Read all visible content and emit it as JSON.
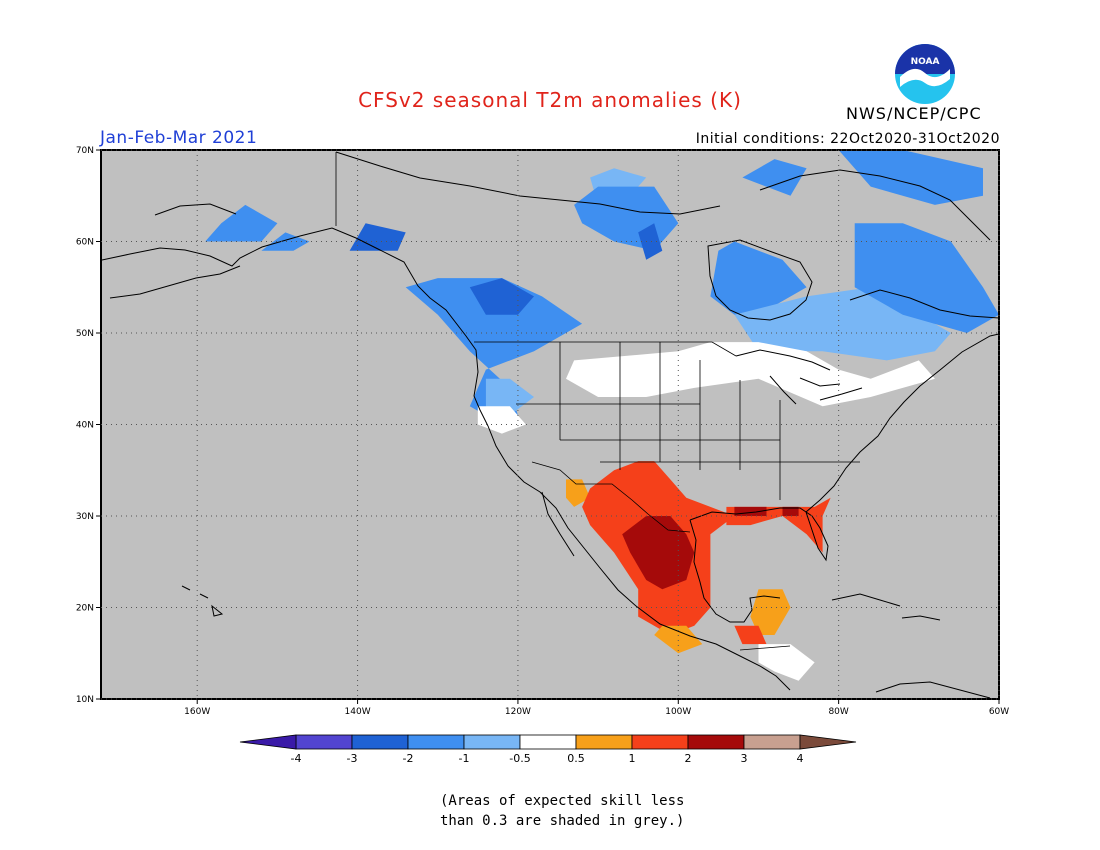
{
  "title": "CFSv2 seasonal T2m anomalies (K)",
  "agency": "NWS/NCEP/CPC",
  "logo_text": "NOAA",
  "period": "Jan-Feb-Mar 2021",
  "initial_conditions": "Initial conditions: 22Oct2020-31Oct2020",
  "note_lines": [
    "(Areas of expected skill less",
    "than 0.3 are shaded in grey.)"
  ],
  "colors": {
    "grey": "#c0c0c0",
    "lt4": "#3a1aa8",
    "m4m3": "#5244d0",
    "m3m2": "#1f62d4",
    "m2m1": "#3f8ff0",
    "m1m05": "#78b6f5",
    "neutral": "#ffffff",
    "p05p1": "#f7a01a",
    "p1p2": "#f5401a",
    "p2p3": "#a50a0a",
    "p3p4": "#c8a090",
    "gt4": "#7b4a3a"
  },
  "map": {
    "lon_range": [
      -172,
      -60
    ],
    "lat_range": [
      10,
      70
    ],
    "lon_ticks": [
      {
        "lon": -160,
        "label": "160W"
      },
      {
        "lon": -140,
        "label": "140W"
      },
      {
        "lon": -120,
        "label": "120W"
      },
      {
        "lon": -100,
        "label": "100W"
      },
      {
        "lon": -80,
        "label": "80W"
      },
      {
        "lon": -60,
        "label": "60W"
      }
    ],
    "lat_ticks": [
      {
        "lat": 10,
        "label": "10N"
      },
      {
        "lat": 20,
        "label": "20N"
      },
      {
        "lat": 30,
        "label": "30N"
      },
      {
        "lat": 40,
        "label": "40N"
      },
      {
        "lat": 50,
        "label": "50N"
      },
      {
        "lat": 60,
        "label": "60N"
      },
      {
        "lat": 70,
        "label": "70N"
      }
    ]
  },
  "legend": {
    "labels": [
      "-4",
      "-3",
      "-2",
      "-1",
      "-0.5",
      "0.5",
      "1",
      "2",
      "3",
      "4"
    ],
    "bins": [
      "m4m3",
      "m3m2",
      "m2m1",
      "m1m05",
      "neutral",
      "p05p1",
      "p1p2",
      "p2p3",
      "p3p4"
    ],
    "low_end": "lt4",
    "high_end": "gt4"
  },
  "anomaly_regions": [
    {
      "bin": "m2m1",
      "name": "alaska-west",
      "coords": [
        [
          -159,
          60
        ],
        [
          -157,
          62
        ],
        [
          -154,
          64
        ],
        [
          -150,
          62
        ],
        [
          -152,
          60
        ]
      ]
    },
    {
      "bin": "m2m1",
      "name": "alaska-gulf",
      "coords": [
        [
          -152,
          59
        ],
        [
          -149,
          61
        ],
        [
          -146,
          60
        ],
        [
          -148,
          59
        ]
      ]
    },
    {
      "bin": "m3m2",
      "name": "alaska-panhandle",
      "coords": [
        [
          -141,
          59
        ],
        [
          -139,
          62
        ],
        [
          -134,
          61
        ],
        [
          -135,
          59
        ]
      ]
    },
    {
      "bin": "m2m1",
      "name": "northwest-canada",
      "coords": [
        [
          -134,
          55
        ],
        [
          -130,
          56
        ],
        [
          -122,
          56
        ],
        [
          -117,
          54
        ],
        [
          -112,
          51
        ],
        [
          -118,
          48
        ],
        [
          -124,
          46
        ],
        [
          -126,
          42
        ],
        [
          -122,
          40
        ],
        [
          -120,
          41
        ],
        [
          -121,
          44
        ],
        [
          -126,
          48
        ],
        [
          -130,
          52
        ]
      ]
    },
    {
      "bin": "m3m2",
      "name": "bc-core",
      "coords": [
        [
          -126,
          55
        ],
        [
          -122,
          56
        ],
        [
          -118,
          54
        ],
        [
          -120,
          52
        ],
        [
          -124,
          52
        ]
      ]
    },
    {
      "bin": "m1m05",
      "name": "pnw-fringe",
      "coords": [
        [
          -124,
          45
        ],
        [
          -121,
          45
        ],
        [
          -118,
          43
        ],
        [
          -121,
          41
        ],
        [
          -124,
          42
        ]
      ]
    },
    {
      "bin": "m1m05",
      "name": "nunavut-lightblue",
      "coords": [
        [
          -111,
          67
        ],
        [
          -108,
          68
        ],
        [
          -104,
          67
        ],
        [
          -106,
          65
        ],
        [
          -110,
          64
        ]
      ]
    },
    {
      "bin": "m2m1",
      "name": "nunavut",
      "coords": [
        [
          -113,
          64
        ],
        [
          -110,
          66
        ],
        [
          -103,
          66
        ],
        [
          -100,
          62
        ],
        [
          -103,
          59
        ],
        [
          -108,
          60
        ],
        [
          -112,
          62
        ]
      ]
    },
    {
      "bin": "m3m2",
      "name": "nunavut-dark",
      "coords": [
        [
          -105,
          61
        ],
        [
          -103,
          62
        ],
        [
          -102,
          59
        ],
        [
          -104,
          58
        ]
      ]
    },
    {
      "bin": "m2m1",
      "name": "hudson-bay",
      "coords": [
        [
          -95,
          59
        ],
        [
          -93,
          60
        ],
        [
          -87,
          58
        ],
        [
          -84,
          55
        ],
        [
          -88,
          53
        ],
        [
          -93,
          52
        ],
        [
          -96,
          54
        ]
      ]
    },
    {
      "bin": "m1m05",
      "name": "ontario-quebec",
      "coords": [
        [
          -93,
          52
        ],
        [
          -84,
          54
        ],
        [
          -76,
          55
        ],
        [
          -70,
          52
        ],
        [
          -66,
          50
        ],
        [
          -68,
          48
        ],
        [
          -74,
          47
        ],
        [
          -82,
          48
        ],
        [
          -90,
          48
        ]
      ]
    },
    {
      "bin": "m2m1",
      "name": "labrador",
      "coords": [
        [
          -78,
          62
        ],
        [
          -72,
          62
        ],
        [
          -66,
          60
        ],
        [
          -62,
          55
        ],
        [
          -60,
          52
        ],
        [
          -64,
          50
        ],
        [
          -72,
          52
        ],
        [
          -78,
          55
        ]
      ]
    },
    {
      "bin": "m2m1",
      "name": "baffin",
      "coords": [
        [
          -80,
          70
        ],
        [
          -72,
          70
        ],
        [
          -62,
          68
        ],
        [
          -62,
          65
        ],
        [
          -68,
          64
        ],
        [
          -76,
          66
        ]
      ]
    },
    {
      "bin": "m2m1",
      "name": "arctic-islands",
      "coords": [
        [
          -92,
          67
        ],
        [
          -88,
          69
        ],
        [
          -84,
          68
        ],
        [
          -86,
          65
        ]
      ]
    },
    {
      "bin": "neutral",
      "name": "northern-plains",
      "coords": [
        [
          -113,
          47
        ],
        [
          -100,
          48
        ],
        [
          -96,
          49
        ],
        [
          -90,
          49
        ],
        [
          -84,
          48
        ],
        [
          -80,
          46
        ],
        [
          -76,
          45
        ],
        [
          -70,
          47
        ],
        [
          -68,
          45
        ],
        [
          -76,
          43
        ],
        [
          -82,
          42
        ],
        [
          -90,
          45
        ],
        [
          -98,
          44
        ],
        [
          -104,
          43
        ],
        [
          -110,
          43
        ],
        [
          -114,
          45
        ]
      ]
    },
    {
      "bin": "neutral",
      "name": "pnw-white",
      "coords": [
        [
          -125,
          42
        ],
        [
          -121,
          42
        ],
        [
          -119,
          40
        ],
        [
          -122,
          39
        ],
        [
          -125,
          40
        ]
      ]
    },
    {
      "bin": "p05p1",
      "name": "arizona",
      "coords": [
        [
          -114,
          34
        ],
        [
          -112,
          34
        ],
        [
          -111,
          32
        ],
        [
          -113,
          31
        ],
        [
          -114,
          32
        ]
      ]
    },
    {
      "bin": "p1p2",
      "name": "southwest-mexico",
      "coords": [
        [
          -111,
          33
        ],
        [
          -108,
          35
        ],
        [
          -105,
          36
        ],
        [
          -103,
          36
        ],
        [
          -101,
          34
        ],
        [
          -99,
          32
        ],
        [
          -96,
          31
        ],
        [
          -93,
          30
        ],
        [
          -96,
          28
        ],
        [
          -96,
          24
        ],
        [
          -96,
          20
        ],
        [
          -98,
          18
        ],
        [
          -101,
          17
        ],
        [
          -105,
          19
        ],
        [
          -105,
          22
        ],
        [
          -108,
          26
        ],
        [
          -111,
          29
        ],
        [
          -112,
          31
        ]
      ]
    },
    {
      "bin": "p2p3",
      "name": "mexico-core",
      "coords": [
        [
          -107,
          28
        ],
        [
          -104,
          30
        ],
        [
          -101,
          30
        ],
        [
          -99,
          28
        ],
        [
          -98,
          26
        ],
        [
          -99,
          23
        ],
        [
          -102,
          22
        ],
        [
          -104,
          23
        ],
        [
          -106,
          26
        ]
      ]
    },
    {
      "bin": "p05p1",
      "name": "mexico-south",
      "coords": [
        [
          -102,
          18
        ],
        [
          -99,
          18
        ],
        [
          -97,
          16
        ],
        [
          -100,
          15
        ],
        [
          -103,
          17
        ]
      ]
    },
    {
      "bin": "p1p2",
      "name": "gulf-coast",
      "coords": [
        [
          -94,
          31
        ],
        [
          -90,
          31
        ],
        [
          -87,
          31
        ],
        [
          -83,
          31
        ],
        [
          -81,
          32
        ],
        [
          -82,
          30
        ],
        [
          -82,
          26
        ],
        [
          -81,
          25
        ],
        [
          -84,
          28
        ],
        [
          -87,
          30
        ],
        [
          -91,
          29
        ],
        [
          -94,
          29
        ]
      ]
    },
    {
      "bin": "p2p3",
      "name": "louisiana",
      "coords": [
        [
          -93,
          31
        ],
        [
          -89,
          31
        ],
        [
          -89,
          30
        ],
        [
          -93,
          30
        ]
      ]
    },
    {
      "bin": "p2p3",
      "name": "georgia-coast",
      "coords": [
        [
          -87,
          31
        ],
        [
          -85,
          31
        ],
        [
          -85,
          30
        ],
        [
          -87,
          30
        ]
      ]
    },
    {
      "bin": "p05p1",
      "name": "yucatan",
      "coords": [
        [
          -90,
          22
        ],
        [
          -87,
          22
        ],
        [
          -86,
          20
        ],
        [
          -88,
          17
        ],
        [
          -90,
          17
        ],
        [
          -91,
          19
        ]
      ]
    },
    {
      "bin": "p1p2",
      "name": "central-america",
      "coords": [
        [
          -93,
          18
        ],
        [
          -90,
          18
        ],
        [
          -89,
          16
        ],
        [
          -92,
          16
        ]
      ]
    },
    {
      "bin": "neutral",
      "name": "honduras",
      "coords": [
        [
          -90,
          16
        ],
        [
          -86,
          16
        ],
        [
          -83,
          14
        ],
        [
          -85,
          12
        ],
        [
          -88,
          13
        ],
        [
          -90,
          14
        ]
      ]
    }
  ]
}
